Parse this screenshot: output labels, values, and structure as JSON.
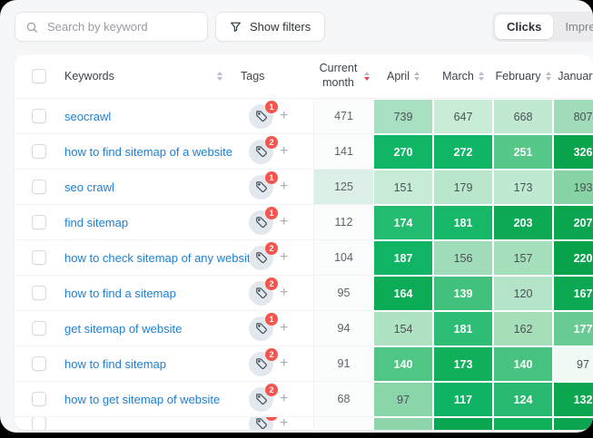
{
  "topbar": {
    "search_placeholder": "Search by keyword",
    "show_filters_label": "Show filters",
    "toggle": {
      "options": [
        "Clicks",
        "Impressions"
      ],
      "active": "Clicks"
    }
  },
  "icons": {
    "add": "+"
  },
  "table": {
    "header": {
      "keywords": "Keywords",
      "tags": "Tags",
      "current": "Current month",
      "months": [
        "April",
        "March",
        "February",
        "January"
      ],
      "sorted_column": "current",
      "sort_direction": "desc"
    },
    "rows": [
      {
        "keyword": "seocrawl",
        "tag_count": "1",
        "current": "471",
        "current_bg": "#fbfcfc",
        "cells": [
          {
            "v": "739",
            "bg": "#a8dfc0",
            "text": "dark"
          },
          {
            "v": "647",
            "bg": "#c9ecd7",
            "text": "dark"
          },
          {
            "v": "668",
            "bg": "#c1e9d1",
            "text": "dark"
          },
          {
            "v": "807",
            "bg": "#a0dcba",
            "text": "dark"
          }
        ]
      },
      {
        "keyword": "how to find sitemap of a website",
        "tag_count": "2",
        "current": "141",
        "current_bg": "#fbfcfc",
        "cells": [
          {
            "v": "270",
            "bg": "#10b665",
            "text": "light"
          },
          {
            "v": "272",
            "bg": "#10b665",
            "text": "light"
          },
          {
            "v": "251",
            "bg": "#55c786",
            "text": "light"
          },
          {
            "v": "326",
            "bg": "#09a44c",
            "text": "light"
          }
        ]
      },
      {
        "keyword": "seo crawl",
        "tag_count": "1",
        "current": "125",
        "current_bg": "#dcefe6",
        "cells": [
          {
            "v": "151",
            "bg": "#c6ebd6",
            "text": "dark"
          },
          {
            "v": "179",
            "bg": "#bae7cc",
            "text": "dark"
          },
          {
            "v": "173",
            "bg": "#c0e9d1",
            "text": "dark"
          },
          {
            "v": "193",
            "bg": "#86d4a6",
            "text": "dark"
          }
        ]
      },
      {
        "keyword": "find sitemap",
        "tag_count": "1",
        "current": "112",
        "current_bg": "#fbfcfc",
        "cells": [
          {
            "v": "174",
            "bg": "#23bb6f",
            "text": "light"
          },
          {
            "v": "181",
            "bg": "#17b768",
            "text": "light"
          },
          {
            "v": "203",
            "bg": "#0caa53",
            "text": "light"
          },
          {
            "v": "207",
            "bg": "#0aa54e",
            "text": "light"
          }
        ]
      },
      {
        "keyword": "how to check sitemap of any website",
        "tag_count": "2",
        "current": "104",
        "current_bg": "#fbfcfc",
        "cells": [
          {
            "v": "187",
            "bg": "#10b464",
            "text": "light"
          },
          {
            "v": "156",
            "bg": "#a0dcb9",
            "text": "dark"
          },
          {
            "v": "157",
            "bg": "#a4deba",
            "text": "dark"
          },
          {
            "v": "220",
            "bg": "#08a24b",
            "text": "light"
          }
        ]
      },
      {
        "keyword": "how to find a sitemap",
        "tag_count": "2",
        "current": "95",
        "current_bg": "#fbfcfc",
        "cells": [
          {
            "v": "164",
            "bg": "#0cab55",
            "text": "light"
          },
          {
            "v": "139",
            "bg": "#41c17c",
            "text": "light"
          },
          {
            "v": "120",
            "bg": "#b4e4c7",
            "text": "dark"
          },
          {
            "v": "167",
            "bg": "#0ba751",
            "text": "light"
          }
        ]
      },
      {
        "keyword": "get sitemap of website",
        "tag_count": "1",
        "current": "94",
        "current_bg": "#fbfcfc",
        "cells": [
          {
            "v": "154",
            "bg": "#afe1c3",
            "text": "dark"
          },
          {
            "v": "181",
            "bg": "#2ebd75",
            "text": "light"
          },
          {
            "v": "162",
            "bg": "#a6deba",
            "text": "dark"
          },
          {
            "v": "177",
            "bg": "#68cb93",
            "text": "light"
          }
        ]
      },
      {
        "keyword": "how to find sitemap",
        "tag_count": "2",
        "current": "91",
        "current_bg": "#fbfcfc",
        "cells": [
          {
            "v": "140",
            "bg": "#50c684",
            "text": "light"
          },
          {
            "v": "173",
            "bg": "#10af59",
            "text": "light"
          },
          {
            "v": "140",
            "bg": "#47c37f",
            "text": "light"
          },
          {
            "v": "97",
            "bg": "#f0f9f4",
            "text": "dark"
          }
        ]
      },
      {
        "keyword": "how to get sitemap of website",
        "tag_count": "2",
        "current": "68",
        "current_bg": "#fbfcfc",
        "cells": [
          {
            "v": "97",
            "bg": "#8bd5aa",
            "text": "dark"
          },
          {
            "v": "117",
            "bg": "#10b363",
            "text": "light"
          },
          {
            "v": "124",
            "bg": "#27b970",
            "text": "light"
          },
          {
            "v": "132",
            "bg": "#0ba64f",
            "text": "light"
          }
        ]
      }
    ],
    "partial_row": {
      "tag_count": "2",
      "current_bg": "#fbfcfc",
      "cell_bgs": [
        "#8ed5ab",
        "#0aa750",
        "#10af59",
        "#0aa54e"
      ]
    }
  },
  "colors": {
    "badge_red": "#f4564d",
    "link_blue": "#1d80d4",
    "heat_strong_green": "#10b665",
    "sort_active_red": "#ed3f4d"
  }
}
